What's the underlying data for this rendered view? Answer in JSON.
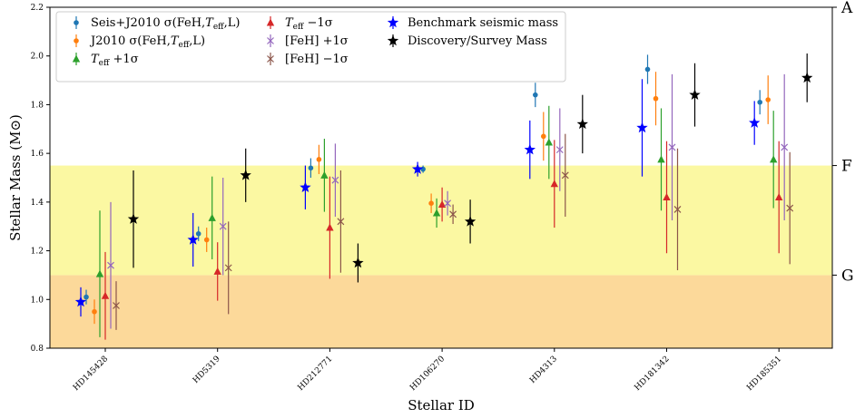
{
  "chart_data": {
    "type": "scatter",
    "title": "",
    "xlabel": "Stellar ID",
    "ylabel": "Stellar Mass (M⊙)",
    "ylim": [
      0.8,
      2.2
    ],
    "yticks": [
      "0.8",
      "1.0",
      "1.2",
      "1.4",
      "1.6",
      "1.8",
      "2.0",
      "2.2"
    ],
    "categories": [
      "HD145428",
      "HD5319",
      "HD212771",
      "HD106270",
      "HD4313",
      "HD181342",
      "HD185351"
    ],
    "bands": [
      {
        "name": "G",
        "from": 0.8,
        "to": 1.1,
        "color": "#fcd99a"
      },
      {
        "name": "F",
        "from": 1.1,
        "to": 1.55,
        "color": "#fbf8a2"
      }
    ],
    "secondary_axis_labels": [
      {
        "label": "A",
        "value": 2.2
      },
      {
        "label": "F",
        "value": 1.55
      },
      {
        "label": "G",
        "value": 1.1
      }
    ],
    "legend_location": "top-left",
    "series": [
      {
        "name": "Seis+J2010 σ(FeH,T_eff,L)",
        "color": "#1f77b4",
        "marker": "circle",
        "values": [
          1.01,
          1.27,
          1.54,
          1.535,
          1.84,
          1.945,
          1.81
        ],
        "err": [
          0.03,
          0.03,
          0.04,
          0.015,
          0.05,
          0.06,
          0.05
        ]
      },
      {
        "name": "J2010 σ(FeH,T_eff,L)",
        "color": "#ff7f0e",
        "marker": "circle",
        "values": [
          0.95,
          1.245,
          1.575,
          1.395,
          1.67,
          1.825,
          1.82
        ],
        "err": [
          0.05,
          0.05,
          0.06,
          0.04,
          0.1,
          0.11,
          0.1
        ]
      },
      {
        "name": "T_eff +1σ",
        "color": "#2ca02c",
        "marker": "triangle",
        "values": [
          1.105,
          1.335,
          1.51,
          1.355,
          1.645,
          1.575,
          1.575
        ],
        "err": [
          0.26,
          0.17,
          0.15,
          0.06,
          0.15,
          0.21,
          0.2
        ]
      },
      {
        "name": "T_eff −1σ",
        "color": "#d62728",
        "marker": "triangle",
        "values": [
          1.015,
          1.115,
          1.295,
          1.39,
          1.475,
          1.42,
          1.42
        ],
        "err": [
          0.18,
          0.12,
          0.21,
          0.07,
          0.18,
          0.23,
          0.23
        ]
      },
      {
        "name": "[FeH] +1σ",
        "color": "#9467bd",
        "marker": "x",
        "values": [
          1.14,
          1.3,
          1.49,
          1.395,
          1.615,
          1.625,
          1.625
        ],
        "err": [
          0.26,
          0.2,
          0.15,
          0.05,
          0.17,
          0.3,
          0.3
        ]
      },
      {
        "name": "[FeH] −1σ",
        "color": "#8c564b",
        "marker": "x",
        "values": [
          0.975,
          1.13,
          1.32,
          1.35,
          1.51,
          1.37,
          1.375
        ],
        "err": [
          0.1,
          0.19,
          0.21,
          0.04,
          0.17,
          0.25,
          0.23
        ]
      },
      {
        "name": "Benchmark seismic mass",
        "color": "#0000ff",
        "marker": "star",
        "values": [
          0.99,
          1.245,
          1.46,
          1.535,
          1.615,
          1.705,
          1.725
        ],
        "err": [
          0.06,
          0.11,
          0.09,
          0.03,
          0.12,
          0.2,
          0.09
        ]
      },
      {
        "name": "Discovery/Survey Mass",
        "color": "#000000",
        "marker": "star",
        "values": [
          1.33,
          1.51,
          1.15,
          1.32,
          1.72,
          1.84,
          1.91
        ],
        "err": [
          0.2,
          0.11,
          0.08,
          0.09,
          0.12,
          0.13,
          0.1
        ]
      }
    ]
  },
  "legend": {
    "items": [
      {
        "main": "Seis+J2010 σ(FeH,",
        "sub": "eff",
        "tail": ",L)",
        "italicT": true
      },
      {
        "main": "J2010 σ(FeH,",
        "sub": "eff",
        "tail": ",L)",
        "italicT": true
      },
      {
        "main": "",
        "sub": "eff",
        "tail": " +1σ",
        "italicT": true
      },
      {
        "main": "",
        "sub": "eff",
        "tail": " −1σ",
        "italicT": true
      },
      {
        "main": "[FeH] +1σ",
        "sub": "",
        "tail": "",
        "italicT": false
      },
      {
        "main": "[FeH] −1σ",
        "sub": "",
        "tail": "",
        "italicT": false
      },
      {
        "main": "Benchmark seismic mass",
        "sub": "",
        "tail": "",
        "italicT": false
      },
      {
        "main": "Discovery/Survey Mass",
        "sub": "",
        "tail": "",
        "italicT": false
      }
    ]
  }
}
